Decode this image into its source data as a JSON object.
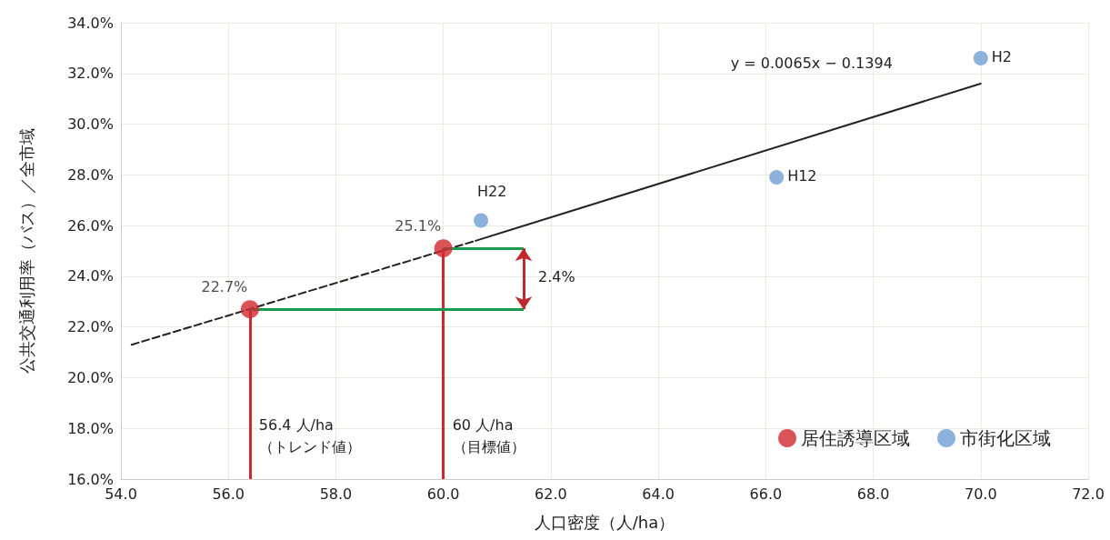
{
  "chart_data": {
    "type": "scatter",
    "xlabel": "人口密度（人/ha）",
    "ylabel": "公共交通利用率（バス）／全市域",
    "xlim": [
      54,
      72
    ],
    "xticks": [
      {
        "value": 54,
        "label": "54.0"
      },
      {
        "value": 56,
        "label": "56.0"
      },
      {
        "value": 58,
        "label": "58.0"
      },
      {
        "value": 60,
        "label": "60.0"
      },
      {
        "value": 62,
        "label": "62.0"
      },
      {
        "value": 64,
        "label": "64.0"
      },
      {
        "value": 66,
        "label": "66.0"
      },
      {
        "value": 68,
        "label": "68.0"
      },
      {
        "value": 70,
        "label": "70.0"
      },
      {
        "value": 72,
        "label": "72.0"
      }
    ],
    "ylim": [
      16,
      34
    ],
    "yticks": [
      {
        "value": 16,
        "label": "16.0%"
      },
      {
        "value": 18,
        "label": "18.0%"
      },
      {
        "value": 20,
        "label": "20.0%"
      },
      {
        "value": 22,
        "label": "22.0%"
      },
      {
        "value": 24,
        "label": "24.0%"
      },
      {
        "value": 26,
        "label": "26.0%"
      },
      {
        "value": 28,
        "label": "28.0%"
      },
      {
        "value": 30,
        "label": "30.0%"
      },
      {
        "value": 32,
        "label": "32.0%"
      },
      {
        "value": 34,
        "label": "34.0%"
      }
    ],
    "series": [
      {
        "name": "居住誘導区域",
        "color": "#d0282e",
        "x": [
          56.4,
          60
        ],
        "values": [
          22.7,
          25.1
        ],
        "value_labels": [
          "22.7%",
          "25.1%"
        ]
      },
      {
        "name": "市街化区域",
        "color": "#6f9fd2",
        "x": [
          60.7,
          66.2,
          70
        ],
        "values": [
          26.2,
          27.9,
          32.6
        ]
      },
      {
        "type": "line",
        "color": "#222222",
        "line_style": "dashed",
        "marker": "none",
        "x": [
          54.2,
          60.6
        ],
        "values": [
          21.3,
          25.4
        ]
      },
      {
        "type": "line",
        "color": "#222222",
        "line_style": "solid",
        "marker": "none",
        "x": [
          60.6,
          70
        ],
        "values": [
          25.4,
          31.6
        ]
      }
    ],
    "ref_lines": [
      {
        "axis": "x",
        "value": 56.4,
        "label": "56.4 人/ha\n（トレンド値）",
        "color": "#d0282e"
      },
      {
        "axis": "x",
        "value": 60,
        "label": "60 人/ha\n（目標値）",
        "color": "#d0282e"
      },
      {
        "axis": "y",
        "value": 22.7,
        "color": "#1a9a50"
      },
      {
        "axis": "y",
        "value": 25.1,
        "color": "#1a9a50"
      }
    ],
    "annotations": [
      "2.4%",
      "y = 0.0065x − 0.1394",
      {
        "text": "H22",
        "x": 60.7,
        "y": 26.2
      },
      {
        "text": "H12",
        "x": 66.2,
        "y": 27.9
      },
      {
        "text": "H2",
        "x": 70,
        "y": 32.6
      }
    ],
    "marker": "circle",
    "grid": true,
    "legend": "bottom right"
  }
}
